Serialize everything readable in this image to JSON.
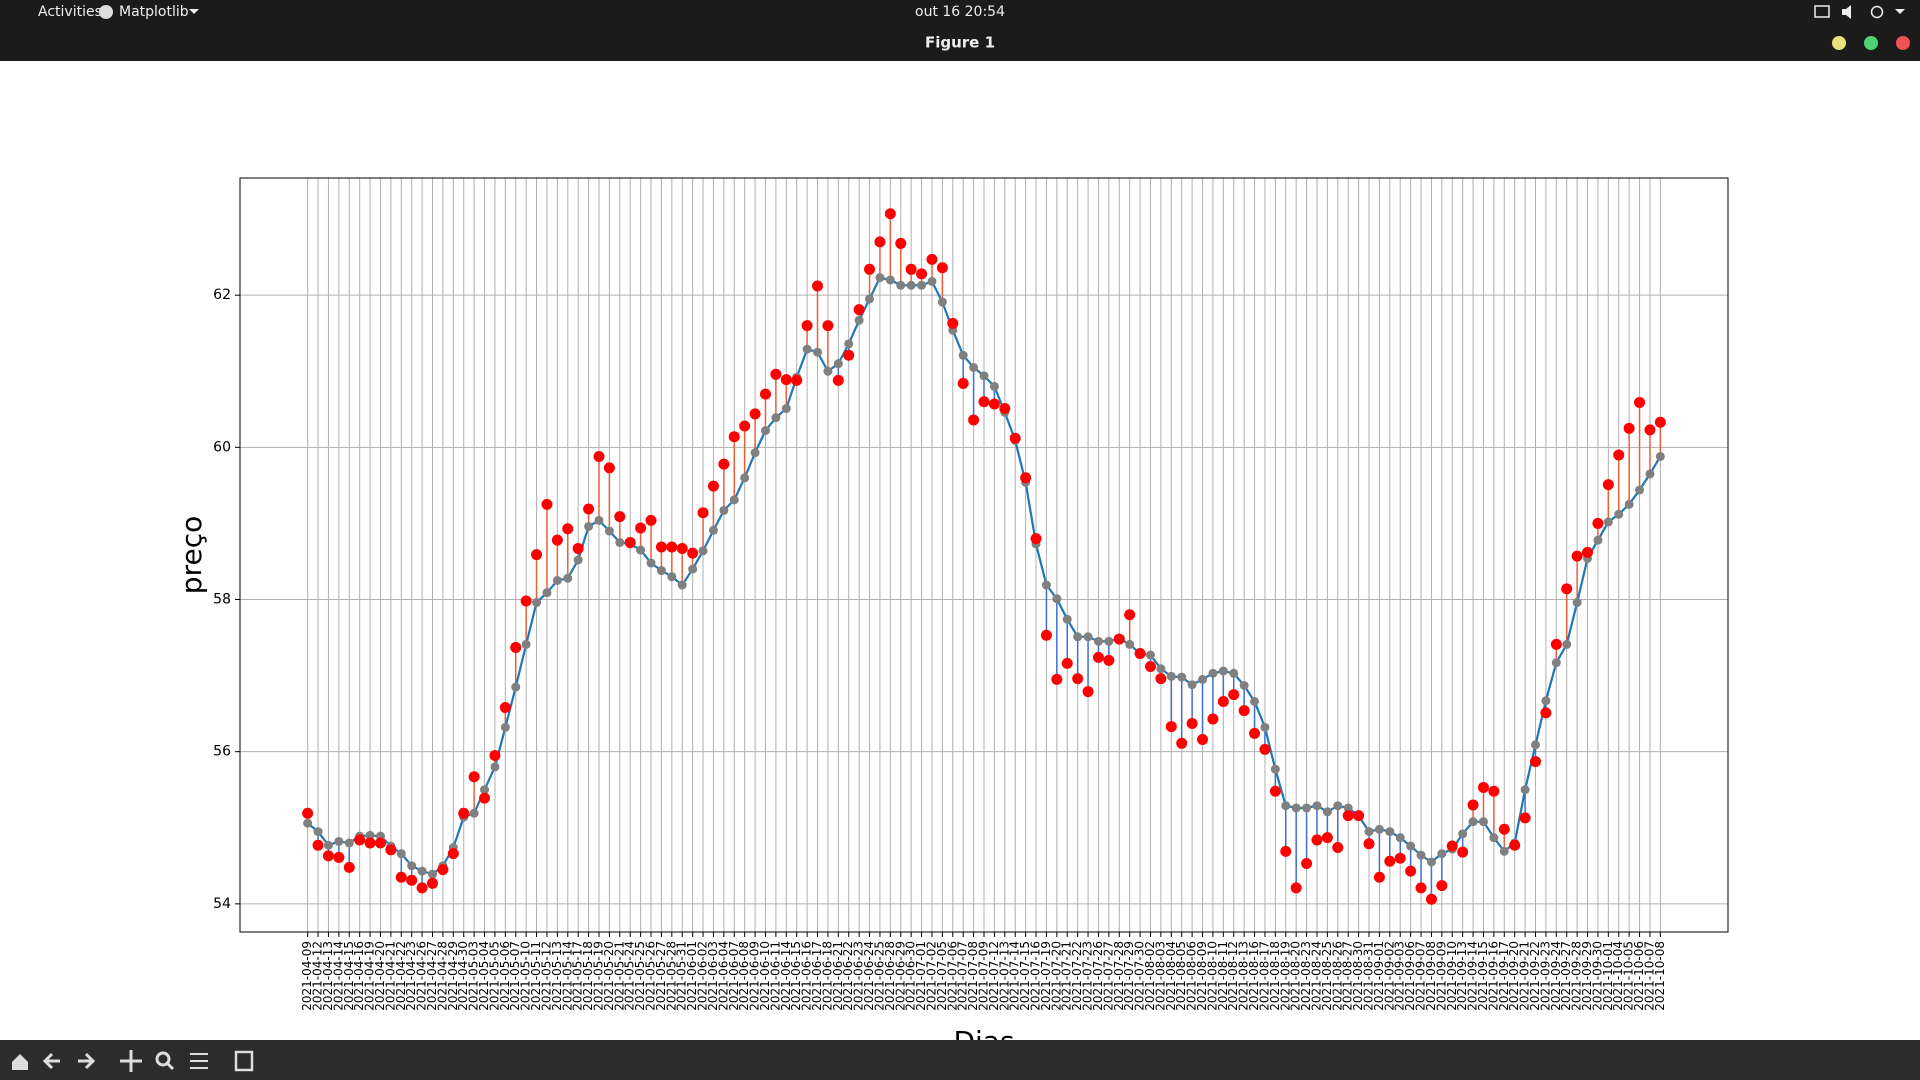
{
  "ui": {
    "activities": "Activities",
    "app": "Matplotlib",
    "clock": "out 16  20:54",
    "window_title": "Figure 1"
  },
  "chart_data": {
    "type": "scatter-stem",
    "ylabel": "preço",
    "xlabel": "Dias",
    "categories": [
      "2021-04-09",
      "2021-04-12",
      "2021-04-13",
      "2021-04-14",
      "2021-04-15",
      "2021-04-16",
      "2021-04-19",
      "2021-04-20",
      "2021-04-21",
      "2021-04-22",
      "2021-04-23",
      "2021-04-26",
      "2021-04-27",
      "2021-04-28",
      "2021-04-29",
      "2021-04-30",
      "2021-05-03",
      "2021-05-04",
      "2021-05-05",
      "2021-05-06",
      "2021-05-07",
      "2021-05-10",
      "2021-05-11",
      "2021-05-12",
      "2021-05-13",
      "2021-05-14",
      "2021-05-17",
      "2021-05-18",
      "2021-05-19",
      "2021-05-20",
      "2021-05-21",
      "2021-05-24",
      "2021-05-25",
      "2021-05-26",
      "2021-05-27",
      "2021-05-28",
      "2021-05-31",
      "2021-06-01",
      "2021-06-02",
      "2021-06-03",
      "2021-06-04",
      "2021-06-07",
      "2021-06-08",
      "2021-06-09",
      "2021-06-10",
      "2021-06-11",
      "2021-06-14",
      "2021-06-15",
      "2021-06-16",
      "2021-06-17",
      "2021-06-18",
      "2021-06-21",
      "2021-06-22",
      "2021-06-23",
      "2021-06-24",
      "2021-06-25",
      "2021-06-28",
      "2021-06-29",
      "2021-06-30",
      "2021-07-01",
      "2021-07-02",
      "2021-07-05",
      "2021-07-06",
      "2021-07-07",
      "2021-07-08",
      "2021-07-09",
      "2021-07-12",
      "2021-07-13",
      "2021-07-14",
      "2021-07-15",
      "2021-07-16",
      "2021-07-19",
      "2021-07-20",
      "2021-07-21",
      "2021-07-22",
      "2021-07-23",
      "2021-07-26",
      "2021-07-27",
      "2021-07-28",
      "2021-07-29",
      "2021-07-30",
      "2021-08-02",
      "2021-08-03",
      "2021-08-04",
      "2021-08-05",
      "2021-08-06",
      "2021-08-09",
      "2021-08-10",
      "2021-08-11",
      "2021-08-12",
      "2021-08-13",
      "2021-08-16",
      "2021-08-17",
      "2021-08-18",
      "2021-08-19",
      "2021-08-20",
      "2021-08-23",
      "2021-08-24",
      "2021-08-25",
      "2021-08-26",
      "2021-08-27",
      "2021-08-30",
      "2021-08-31",
      "2021-09-01",
      "2021-09-02",
      "2021-09-03",
      "2021-09-06",
      "2021-09-07",
      "2021-09-08",
      "2021-09-09",
      "2021-09-10",
      "2021-09-13",
      "2021-09-14",
      "2021-09-15",
      "2021-09-16",
      "2021-09-17",
      "2021-09-20",
      "2021-09-21",
      "2021-09-22",
      "2021-09-23",
      "2021-09-24",
      "2021-09-27",
      "2021-09-28",
      "2021-09-29",
      "2021-09-30",
      "2021-10-01",
      "2021-10-04",
      "2021-10-05",
      "2021-10-06",
      "2021-10-07",
      "2021-10-08"
    ],
    "series": [
      {
        "color": "#ff0000",
        "values": [
          55.19,
          54.77,
          54.63,
          54.61,
          54.48,
          54.84,
          54.8,
          54.8,
          54.71,
          54.35,
          54.31,
          54.21,
          54.27,
          54.45,
          54.66,
          55.19,
          55.67,
          55.39,
          55.95,
          56.58,
          57.37,
          57.98,
          58.59,
          59.25,
          58.78,
          58.93,
          58.67,
          59.19,
          59.88,
          59.73,
          59.09,
          58.75,
          58.94,
          59.04,
          58.69,
          58.69,
          58.67,
          58.61,
          59.14,
          59.49,
          59.78,
          60.14,
          60.28,
          60.44,
          60.7,
          60.96,
          60.89,
          60.88,
          61.6,
          62.12,
          61.6,
          60.88,
          61.21,
          61.81,
          62.34,
          62.7,
          63.07,
          62.68,
          62.34,
          62.28,
          62.47,
          62.36,
          61.63,
          60.84,
          60.36,
          60.6,
          60.57,
          60.51,
          60.12,
          59.6,
          58.8,
          57.53,
          56.95,
          57.16,
          56.96,
          56.79,
          57.24,
          57.2,
          57.48,
          57.8,
          57.29,
          57.12,
          56.96,
          56.33,
          56.11,
          56.37,
          56.16,
          56.43,
          56.66,
          56.75,
          56.54,
          56.24,
          56.03,
          55.48,
          54.69,
          54.21,
          54.53,
          54.84,
          54.87,
          54.74,
          55.16,
          55.16,
          54.79,
          54.35,
          54.56,
          54.6,
          54.43,
          54.21,
          54.06,
          54.24,
          54.76,
          54.68,
          55.3,
          55.53,
          55.48,
          54.98,
          54.77,
          55.13,
          55.87,
          56.51,
          57.41,
          58.14,
          58.57,
          58.62,
          59.0,
          59.51,
          59.9,
          60.25,
          60.59,
          60.23,
          60.33
        ]
      },
      {
        "color": "#808080",
        "values": [
          55.06,
          54.95,
          54.77,
          54.82,
          54.8,
          54.89,
          54.9,
          54.89,
          54.76,
          54.66,
          54.5,
          54.43,
          54.39,
          54.5,
          54.74,
          55.14,
          55.19,
          55.5,
          55.8,
          56.32,
          56.85,
          57.41,
          57.96,
          58.09,
          58.25,
          58.28,
          58.52,
          58.96,
          59.04,
          58.9,
          58.75,
          58.73,
          58.65,
          58.48,
          58.38,
          58.3,
          58.19,
          58.4,
          58.64,
          58.91,
          59.17,
          59.31,
          59.6,
          59.93,
          60.22,
          60.39,
          60.51,
          60.92,
          61.29,
          61.25,
          61.0,
          61.1,
          61.36,
          61.67,
          61.95,
          62.23,
          62.2,
          62.13,
          62.13,
          62.13,
          62.18,
          61.91,
          61.54,
          61.21,
          61.05,
          60.94,
          60.8,
          60.46,
          60.09,
          59.54,
          58.73,
          58.19,
          58.01,
          57.74,
          57.51,
          57.51,
          57.45,
          57.45,
          57.49,
          57.41,
          57.29,
          57.27,
          57.09,
          56.99,
          56.98,
          56.88,
          56.95,
          57.03,
          57.06,
          57.03,
          56.87,
          56.66,
          56.32,
          55.77,
          55.29,
          55.26,
          55.26,
          55.29,
          55.21,
          55.29,
          55.26,
          55.16,
          54.95,
          54.98,
          54.95,
          54.87,
          54.76,
          54.64,
          54.55,
          54.66,
          54.72,
          54.92,
          55.08,
          55.08,
          54.87,
          54.69,
          54.8,
          55.5,
          56.09,
          56.67,
          57.17,
          57.41,
          57.96,
          58.54,
          58.78,
          59.02,
          59.12,
          59.25,
          59.44,
          59.65,
          59.88
        ]
      },
      {
        "color": "#1f77b4",
        "line": true,
        "values": [
          55.06,
          54.95,
          54.77,
          54.82,
          54.8,
          54.89,
          54.9,
          54.89,
          54.76,
          54.66,
          54.5,
          54.43,
          54.39,
          54.5,
          54.74,
          55.14,
          55.19,
          55.5,
          55.8,
          56.32,
          56.85,
          57.41,
          57.96,
          58.09,
          58.25,
          58.28,
          58.52,
          58.96,
          59.04,
          58.9,
          58.75,
          58.73,
          58.65,
          58.48,
          58.38,
          58.3,
          58.19,
          58.4,
          58.64,
          58.91,
          59.17,
          59.31,
          59.6,
          59.93,
          60.22,
          60.39,
          60.51,
          60.92,
          61.29,
          61.25,
          61.0,
          61.1,
          61.36,
          61.67,
          61.95,
          62.23,
          62.2,
          62.13,
          62.13,
          62.13,
          62.18,
          61.91,
          61.54,
          61.21,
          61.05,
          60.94,
          60.8,
          60.46,
          60.09,
          59.54,
          58.73,
          58.19,
          58.01,
          57.74,
          57.51,
          57.51,
          57.45,
          57.45,
          57.49,
          57.41,
          57.29,
          57.27,
          57.09,
          56.99,
          56.98,
          56.88,
          56.95,
          57.03,
          57.06,
          57.03,
          56.87,
          56.66,
          56.32,
          55.77,
          55.29,
          55.26,
          55.26,
          55.29,
          55.21,
          55.29,
          55.26,
          55.16,
          54.95,
          54.98,
          54.95,
          54.87,
          54.76,
          54.64,
          54.55,
          54.66,
          54.72,
          54.92,
          55.08,
          55.08,
          54.87,
          54.69,
          54.8,
          55.5,
          56.09,
          56.67,
          57.17,
          57.41,
          57.96,
          58.54,
          58.78,
          59.02,
          59.12,
          59.25,
          59.44,
          59.65,
          59.88
        ]
      }
    ],
    "stem_up_color": "#e8603c",
    "stem_down_color": "#3f6fd1",
    "ylim": [
      53.63,
      63.54
    ],
    "yticks": [
      54,
      56,
      58,
      60,
      62
    ],
    "grid": true
  }
}
